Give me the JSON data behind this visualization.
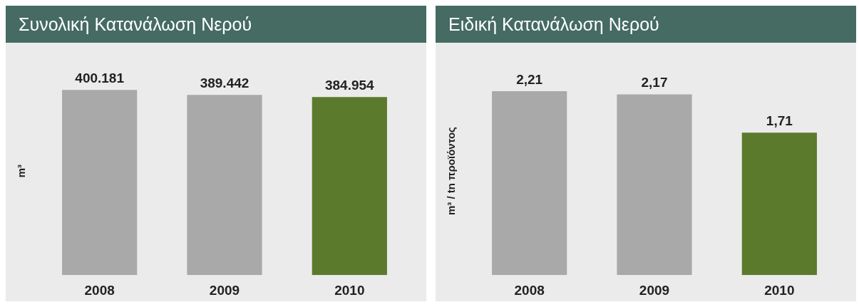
{
  "chart_data": [
    {
      "type": "bar",
      "title": "Συνολική Κατανάλωση Νερού",
      "ylabel": "m³",
      "categories": [
        "2008",
        "2009",
        "2010"
      ],
      "values": [
        400181,
        389442,
        384954
      ],
      "colors": [
        "#a9a9a9",
        "#a9a9a9",
        "#5b7a2c"
      ],
      "value_labels": [
        "400.181",
        "389.442",
        "384.954"
      ]
    },
    {
      "type": "bar",
      "title": "Ειδική Κατανάλωση Νερού",
      "ylabel": "m³ / tn προϊόντος",
      "categories": [
        "2008",
        "2009",
        "2010"
      ],
      "values": [
        2.21,
        2.17,
        1.71
      ],
      "colors": [
        "#a9a9a9",
        "#a9a9a9",
        "#5b7a2c"
      ],
      "value_labels": [
        "2,21",
        "2,17",
        "1,71"
      ]
    }
  ]
}
